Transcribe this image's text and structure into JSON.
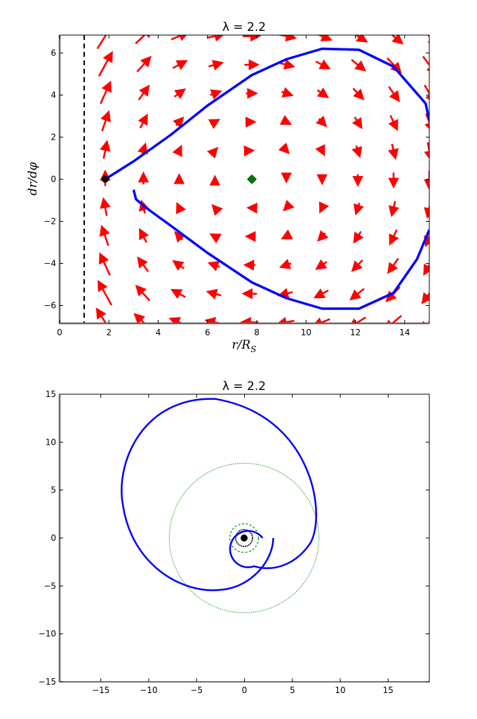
{
  "chart_data": [
    {
      "type": "quiver",
      "title": "λ = 2.2",
      "xlabel": "r/R_S",
      "ylabel": "dr/dφ",
      "xlim": [
        0,
        15
      ],
      "ylim": [
        -6.85,
        6.85
      ],
      "xticks": [
        0,
        2,
        4,
        6,
        8,
        10,
        12,
        14
      ],
      "yticks": [
        -6,
        -4,
        -2,
        0,
        2,
        4,
        6
      ],
      "grid": false,
      "legend": null,
      "annotations": {
        "dashed_vertical_line": {
          "x": 1.0,
          "color": "#000000",
          "style": "dashed"
        },
        "start_point": {
          "x": 1.85,
          "y": 0.0,
          "color": "#000000",
          "marker": "circle"
        },
        "fixed_point": {
          "x": 7.8,
          "y": 0.0,
          "color": "#008000",
          "marker": "diamond"
        }
      },
      "quiver_grid": {
        "x": [
          1.85,
          3.4,
          4.85,
          6.3,
          7.75,
          9.2,
          10.65,
          12.1,
          13.55,
          15.0
        ],
        "y": [
          -6.8,
          -5.44,
          -4.08,
          -2.72,
          -1.36,
          0.0,
          1.36,
          2.72,
          4.08,
          5.44,
          6.8
        ],
        "color": "#ff0000"
      },
      "series": [
        {
          "name": "trajectory",
          "color": "#0000ff",
          "x": [
            1.85,
            3.0,
            4.5,
            6.0,
            7.8,
            9.2,
            10.65,
            12.15,
            13.55,
            14.85,
            15.0
          ],
          "y": [
            0.0,
            0.85,
            2.1,
            3.5,
            4.95,
            5.7,
            6.2,
            6.15,
            5.35,
            3.6,
            2.8
          ]
        },
        {
          "name": "trajectory-lower",
          "color": "#0000ff",
          "x": [
            3.0,
            3.1,
            3.5,
            4.5,
            6.0,
            7.8,
            9.2,
            10.65,
            12.15,
            13.55,
            14.5,
            15.0
          ],
          "y": [
            -0.5,
            -0.95,
            -1.35,
            -2.2,
            -3.5,
            -4.9,
            -5.65,
            -6.15,
            -6.15,
            -5.4,
            -3.8,
            -2.4
          ]
        }
      ]
    },
    {
      "type": "line",
      "title": "λ = 2.2",
      "xlabel": "",
      "ylabel": "",
      "xlim": [
        -19.3,
        19.3
      ],
      "ylim": [
        -15,
        15
      ],
      "xticks": [
        -15,
        -10,
        -5,
        0,
        5,
        10,
        15
      ],
      "yticks": [
        -15,
        -10,
        -5,
        0,
        5,
        10,
        15
      ],
      "grid": false,
      "legend": null,
      "series": [
        {
          "name": "orbit (spiral)",
          "color": "#0000ff",
          "style": "solid",
          "description": "outward spiral from r≈3 at φ=0 through min radius ~1.85 to max radius ~15"
        },
        {
          "name": "circle r=7.8",
          "color": "#2ca02c",
          "style": "dotted",
          "r": 7.8
        },
        {
          "name": "inner circle r≈1.5",
          "color": "#2ca02c",
          "style": "dashed",
          "r": 1.5
        },
        {
          "name": "photon sphere r≈1.0",
          "color": "#000000",
          "style": "dotted",
          "r": 1.0
        },
        {
          "name": "black hole",
          "color": "#000000",
          "style": "filled",
          "r": 0.35
        }
      ]
    }
  ],
  "plots": {
    "top": {
      "title": "λ = 2.2",
      "xlabel": "r/R",
      "xlabel_sub": "S",
      "ylabel": "dr/dφ",
      "xtick_labels": [
        "0",
        "2",
        "4",
        "6",
        "8",
        "10",
        "12",
        "14"
      ],
      "ytick_labels": [
        "−6",
        "−4",
        "−2",
        "0",
        "2",
        "4",
        "6"
      ]
    },
    "bottom": {
      "title": "λ = 2.2",
      "xtick_labels": [
        "−15",
        "−10",
        "−5",
        "0",
        "5",
        "10",
        "15"
      ],
      "ytick_labels": [
        "−15",
        "−10",
        "−5",
        "0",
        "5",
        "10",
        "15"
      ]
    }
  },
  "colors": {
    "trajectory": "#0000ff",
    "arrows": "#ff0000",
    "fixed_point": "#008000",
    "circle_green": "#3caa3c",
    "axes": "#555555"
  }
}
